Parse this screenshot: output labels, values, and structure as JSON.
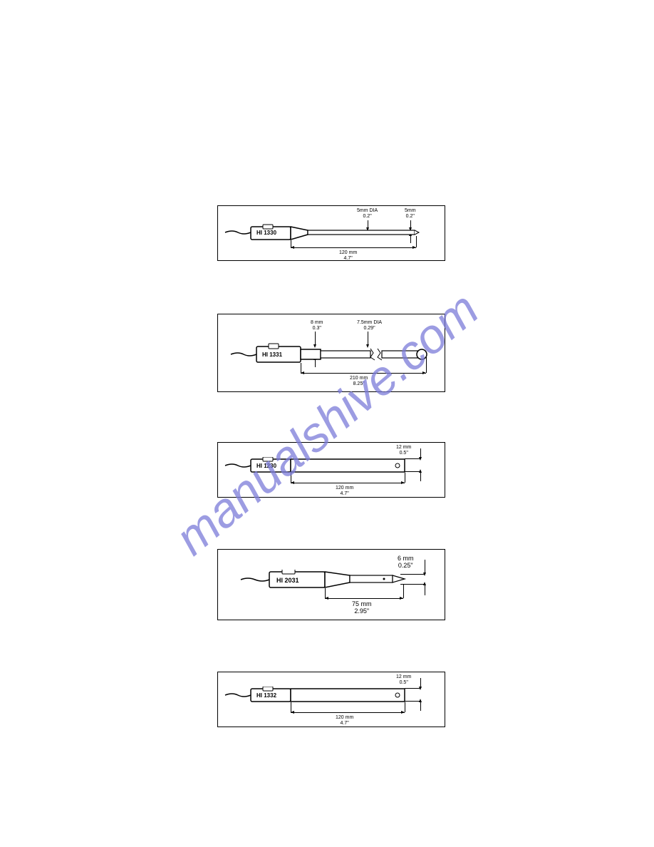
{
  "watermark": "manualshive.com",
  "diagrams": [
    {
      "model": "HI 1330",
      "dia_label": "5mm DIA\n0.2\"",
      "tip_label": "5mm\n0.2\"",
      "length_label": "120 mm\n4.7\"",
      "body_color": "#ffffff",
      "outline_color": "#000000"
    },
    {
      "model": "HI 1331",
      "neck_label": "8 mm\n0.3\"",
      "dia_label": "7.5mm DIA\n0.29\"",
      "length_label": "210 mm\n8.25\"",
      "body_color": "#ffffff",
      "outline_color": "#000000"
    },
    {
      "model": "HI 1230",
      "tip_label": "12 mm\n0.5\"",
      "length_label": "120 mm\n4.7\"",
      "body_color": "#ffffff",
      "outline_color": "#000000"
    },
    {
      "model": "HI 2031",
      "tip_label": "6 mm\n0.25\"",
      "length_label": "75 mm\n2.95\"",
      "body_color": "#ffffff",
      "outline_color": "#000000"
    },
    {
      "model": "HI 1332",
      "tip_label": "12 mm\n0.5\"",
      "length_label": "120 mm\n4.7\"",
      "body_color": "#ffffff",
      "outline_color": "#000000"
    }
  ],
  "page_bg": "#ffffff",
  "watermark_color": "#7b7bd9"
}
